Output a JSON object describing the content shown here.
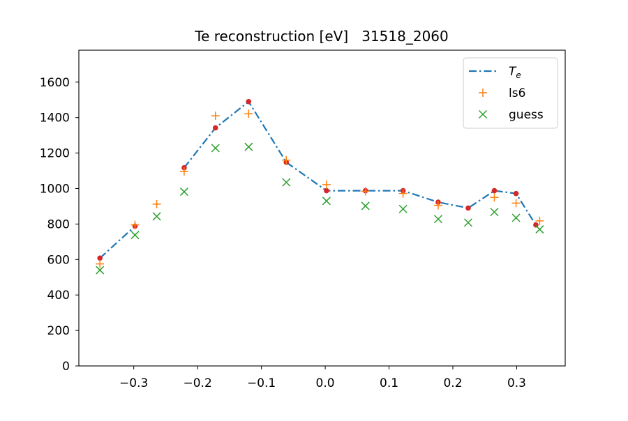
{
  "chart_data": {
    "type": "line",
    "title": "Te reconstruction [eV]   31518_2060",
    "xlabel": "",
    "ylabel": "",
    "xlim": [
      -0.386,
      0.376
    ],
    "ylim": [
      0,
      1780
    ],
    "xticks": [
      -0.3,
      -0.2,
      -0.1,
      0.0,
      0.1,
      0.2,
      0.3
    ],
    "xtick_labels": [
      "−0.3",
      "−0.2",
      "−0.1",
      "0.0",
      "0.1",
      "0.2",
      "0.3"
    ],
    "yticks": [
      0,
      200,
      400,
      600,
      800,
      1000,
      1200,
      1400,
      1600
    ],
    "ytick_labels": [
      "0",
      "200",
      "400",
      "600",
      "800",
      "1000",
      "1200",
      "1400",
      "1600"
    ],
    "grid": false,
    "legend_position": "top-right",
    "series": [
      {
        "name": "T",
        "name_sub": "e",
        "style": "dashdot",
        "color": "#1f77b4",
        "marker_color": "#d62728",
        "segments": [
          [
            [
              -0.353,
              608
            ],
            [
              -0.298,
              788
            ]
          ],
          [
            [
              -0.221,
              1117
            ],
            [
              -0.172,
              1342
            ],
            [
              -0.12,
              1490
            ],
            [
              -0.061,
              1148
            ],
            [
              0.002,
              988
            ],
            [
              0.063,
              988
            ],
            [
              0.122,
              988
            ],
            [
              0.177,
              923
            ],
            [
              0.224,
              890
            ],
            [
              0.265,
              988
            ],
            [
              0.299,
              972
            ],
            [
              0.33,
              795
            ]
          ]
        ]
      },
      {
        "name": "ls6",
        "marker": "plus",
        "color": "#ff7f0e",
        "points": [
          [
            -0.353,
            575
          ],
          [
            -0.298,
            795
          ],
          [
            -0.264,
            912
          ],
          [
            -0.221,
            1097
          ],
          [
            -0.172,
            1410
          ],
          [
            -0.12,
            1422
          ],
          [
            -0.061,
            1160
          ],
          [
            0.002,
            1022
          ],
          [
            0.063,
            985
          ],
          [
            0.122,
            972
          ],
          [
            0.177,
            905
          ],
          [
            0.265,
            950
          ],
          [
            0.299,
            918
          ],
          [
            0.336,
            818
          ]
        ]
      },
      {
        "name": "guess",
        "marker": "x",
        "color": "#2ca02c",
        "points": [
          [
            -0.353,
            540
          ],
          [
            -0.298,
            738
          ],
          [
            -0.264,
            843
          ],
          [
            -0.221,
            982
          ],
          [
            -0.172,
            1228
          ],
          [
            -0.12,
            1235
          ],
          [
            -0.061,
            1035
          ],
          [
            0.002,
            930
          ],
          [
            0.063,
            902
          ],
          [
            0.122,
            885
          ],
          [
            0.177,
            828
          ],
          [
            0.224,
            808
          ],
          [
            0.265,
            868
          ],
          [
            0.299,
            835
          ],
          [
            0.336,
            770
          ]
        ]
      }
    ]
  }
}
